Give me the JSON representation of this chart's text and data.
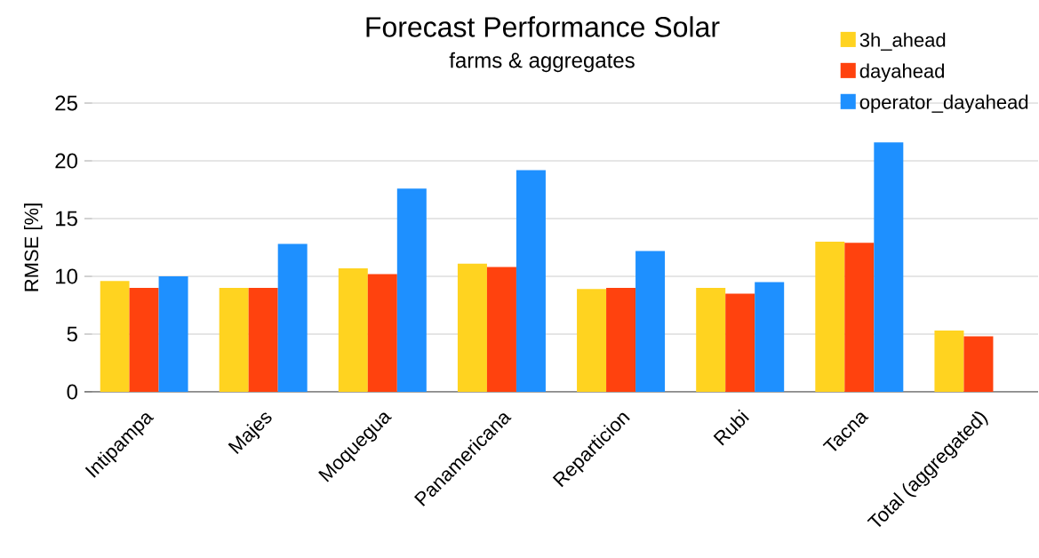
{
  "chart_data": {
    "type": "bar",
    "title": "Forecast Performance Solar",
    "subtitle": "farms & aggregates",
    "ylabel": "RMSE [%]",
    "categories": [
      "Intipampa",
      "Majes",
      "Moquegua",
      "Panamericana",
      "Reparticion",
      "Rubi",
      "Tacna",
      "Total (aggregated)"
    ],
    "series": [
      {
        "name": "3h_ahead",
        "color": "#ffd320",
        "values": [
          9.6,
          9.0,
          10.7,
          11.1,
          8.9,
          9.0,
          13.0,
          5.3
        ]
      },
      {
        "name": "dayahead",
        "color": "#ff420e",
        "values": [
          9.0,
          9.0,
          10.2,
          10.8,
          9.0,
          8.5,
          12.9,
          4.8
        ]
      },
      {
        "name": "operator_dayahead",
        "color": "#1e90ff",
        "values": [
          10.0,
          12.8,
          17.6,
          19.2,
          12.2,
          9.5,
          21.6,
          null
        ]
      }
    ],
    "ylim": [
      0,
      25
    ],
    "yticks": [
      0,
      5,
      10,
      15,
      20,
      25
    ],
    "grid": "y",
    "legend": "top right"
  }
}
